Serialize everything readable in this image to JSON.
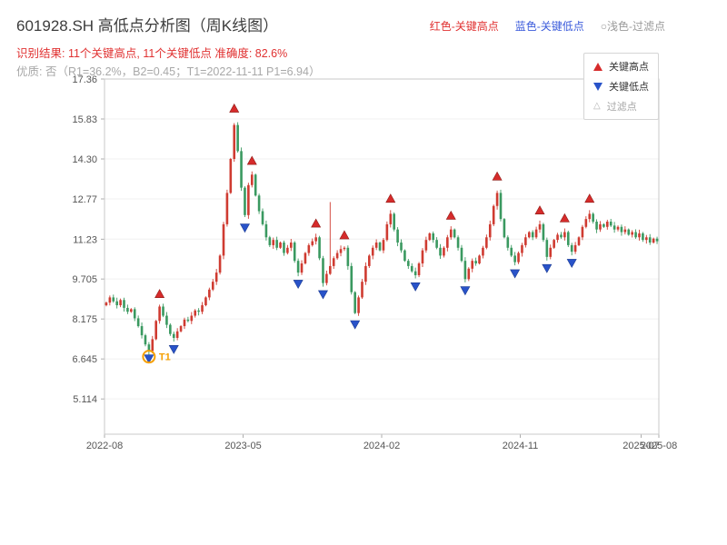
{
  "header": {
    "title": "601928.SH 高低点分析图（周K线图）",
    "top_legend": [
      {
        "label": "红色-关键高点",
        "color": "#e03131"
      },
      {
        "label": "蓝色-关键低点",
        "color": "#3b5bdb"
      },
      {
        "label": "○浅色-过滤点",
        "color": "#9a9a9a"
      }
    ],
    "result_line": "识别结果: 11个关键高点, 11个关键低点  准确度: 82.6%",
    "quality_line": "优质: 否（R1=36.2%，B2=0.45；T1=2022-11-11 P1=6.94）"
  },
  "chart_data": {
    "type": "candlestick",
    "symbol": "601928.SH",
    "period": "周K线",
    "ylim": [
      3.764,
      17.36
    ],
    "y_ticks": [
      "17.36",
      "15.83",
      "14.30",
      "12.77",
      "11.23",
      "9.705",
      "8.175",
      "6.645",
      "5.114"
    ],
    "x_ticks": [
      {
        "label": "2022-08",
        "week": 0
      },
      {
        "label": "2023-05",
        "week": 39
      },
      {
        "label": "2024-02",
        "week": 78
      },
      {
        "label": "2024-11",
        "week": 117
      },
      {
        "label": "2025-07",
        "week": 151
      },
      {
        "label": "2025-08",
        "week": 156
      }
    ],
    "first_open": 8.7,
    "closes": [
      8.8,
      9.0,
      8.85,
      8.7,
      8.9,
      8.6,
      8.45,
      8.55,
      8.2,
      7.9,
      7.55,
      7.2,
      6.95,
      7.4,
      8.1,
      8.65,
      8.3,
      7.95,
      7.6,
      7.45,
      7.7,
      7.9,
      8.15,
      8.1,
      8.3,
      8.5,
      8.45,
      8.7,
      9.0,
      9.3,
      9.6,
      9.95,
      10.6,
      11.8,
      13.0,
      14.3,
      15.6,
      14.6,
      13.2,
      12.15,
      13.3,
      13.7,
      12.9,
      12.3,
      11.8,
      11.3,
      11.0,
      11.2,
      10.9,
      11.1,
      10.7,
      10.9,
      11.1,
      10.4,
      9.95,
      10.3,
      10.7,
      11.0,
      11.15,
      11.3,
      10.5,
      9.55,
      9.9,
      10.2,
      10.5,
      10.7,
      10.85,
      10.9,
      10.2,
      9.2,
      8.4,
      9.0,
      9.6,
      10.2,
      10.6,
      10.9,
      11.1,
      10.8,
      11.2,
      11.8,
      12.2,
      11.6,
      11.1,
      10.8,
      10.4,
      10.2,
      10.0,
      9.85,
      10.3,
      10.8,
      11.2,
      11.45,
      11.2,
      10.9,
      10.6,
      10.9,
      11.3,
      11.6,
      11.3,
      10.9,
      10.4,
      9.7,
      10.1,
      10.4,
      10.3,
      10.6,
      10.9,
      11.3,
      11.8,
      12.5,
      13.0,
      12.0,
      11.3,
      10.9,
      10.6,
      10.35,
      10.7,
      11.0,
      11.3,
      11.5,
      11.3,
      11.6,
      11.8,
      11.2,
      10.55,
      10.9,
      11.2,
      11.4,
      11.3,
      11.5,
      11.0,
      10.75,
      11.0,
      11.3,
      11.7,
      12.0,
      12.2,
      11.9,
      11.6,
      11.8,
      11.7,
      11.9,
      11.75,
      11.6,
      11.7,
      11.5,
      11.6,
      11.4,
      11.5,
      11.3,
      11.45,
      11.2,
      11.3,
      11.1,
      11.25,
      11.15
    ],
    "long_wick": {
      "week": 63,
      "high": 12.65
    },
    "key_highs": [
      [
        15,
        8.85
      ],
      [
        36,
        15.95
      ],
      [
        41,
        13.95
      ],
      [
        59,
        11.55
      ],
      [
        67,
        11.1
      ],
      [
        80,
        12.5
      ],
      [
        97,
        11.85
      ],
      [
        110,
        13.35
      ],
      [
        122,
        12.05
      ],
      [
        129,
        11.75
      ],
      [
        136,
        12.5
      ]
    ],
    "key_lows": [
      [
        12,
        6.94
      ],
      [
        19,
        7.3
      ],
      [
        39,
        11.95
      ],
      [
        54,
        9.8
      ],
      [
        61,
        9.4
      ],
      [
        70,
        8.25
      ],
      [
        87,
        9.7
      ],
      [
        101,
        9.55
      ],
      [
        115,
        10.2
      ],
      [
        124,
        10.4
      ],
      [
        131,
        10.6
      ]
    ],
    "t1_marker": {
      "week": 12,
      "value": 6.94,
      "label": "T1"
    },
    "legend": [
      {
        "symbol": "up-triangle",
        "label": "关键高点",
        "color": "#d62b2b"
      },
      {
        "symbol": "down-triangle",
        "label": "关键低点",
        "color": "#2953c9"
      },
      {
        "symbol": "hollow-triangle",
        "label": "过滤点",
        "color": "#b5b5b5"
      }
    ],
    "colors": {
      "up_candle": "#cf3b31",
      "down_candle": "#3a9960",
      "key_high_marker": "#d62b2b",
      "key_low_marker": "#2953c9",
      "t1_circle": "#f59f00",
      "axis": "#c9c9c9",
      "tick_text": "#555555"
    }
  }
}
